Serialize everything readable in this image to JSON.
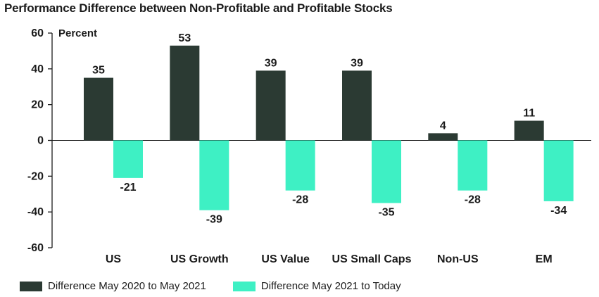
{
  "title": "Performance Difference between Non-Profitable and Profitable Stocks",
  "colors": {
    "series1": "#2b3a33",
    "series2": "#3ef0c4",
    "axis": "#1b1b1b"
  },
  "chart_data": {
    "type": "bar",
    "title": "Performance Difference between Non-Profitable and Profitable Stocks",
    "ylabel": "Percent",
    "xlabel": "",
    "ylim": [
      -60,
      60
    ],
    "yticks": [
      "60",
      "40",
      "20",
      "0",
      "-20",
      "-40",
      "-60"
    ],
    "ytick_values": [
      60,
      40,
      20,
      0,
      -20,
      -40,
      -60
    ],
    "categories": [
      "US",
      "US Growth",
      "US Value",
      "US Small Caps",
      "Non-US",
      "EM"
    ],
    "series": [
      {
        "name": "Difference May 2020 to May 2021",
        "values": [
          35,
          53,
          39,
          39,
          4,
          11
        ]
      },
      {
        "name": "Difference May 2021 to Today",
        "values": [
          -21,
          -39,
          -28,
          -35,
          -28,
          -34
        ]
      }
    ],
    "legend": "bottom-left",
    "grid": false
  }
}
